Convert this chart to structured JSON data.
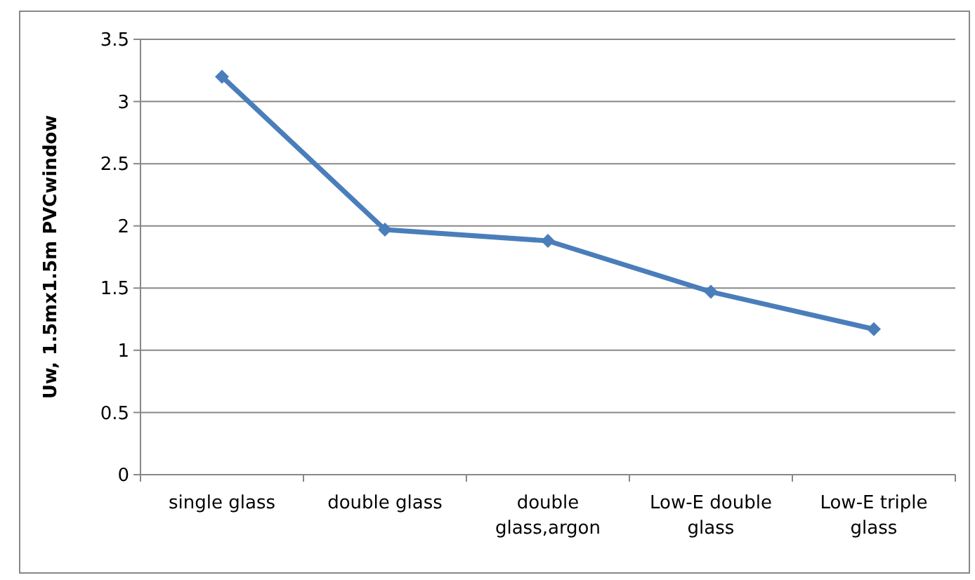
{
  "chart_data": {
    "type": "line",
    "ylabel": "Uw, 1.5mx1.5m PVCwindow",
    "categories": [
      "single glass",
      "double glass",
      "double glass,argon",
      "Low-E double glass",
      "Low-E triple glass"
    ],
    "series": [
      {
        "color": "#4a7ebb",
        "values": [
          3.2,
          1.97,
          1.88,
          1.47,
          1.17
        ]
      }
    ],
    "ylim": [
      0,
      3.5
    ],
    "yticks": [
      0,
      0.5,
      1,
      1.5,
      2,
      2.5,
      3,
      3.5
    ],
    "grid": "y",
    "marker": "diamond",
    "line_style": "solid"
  }
}
